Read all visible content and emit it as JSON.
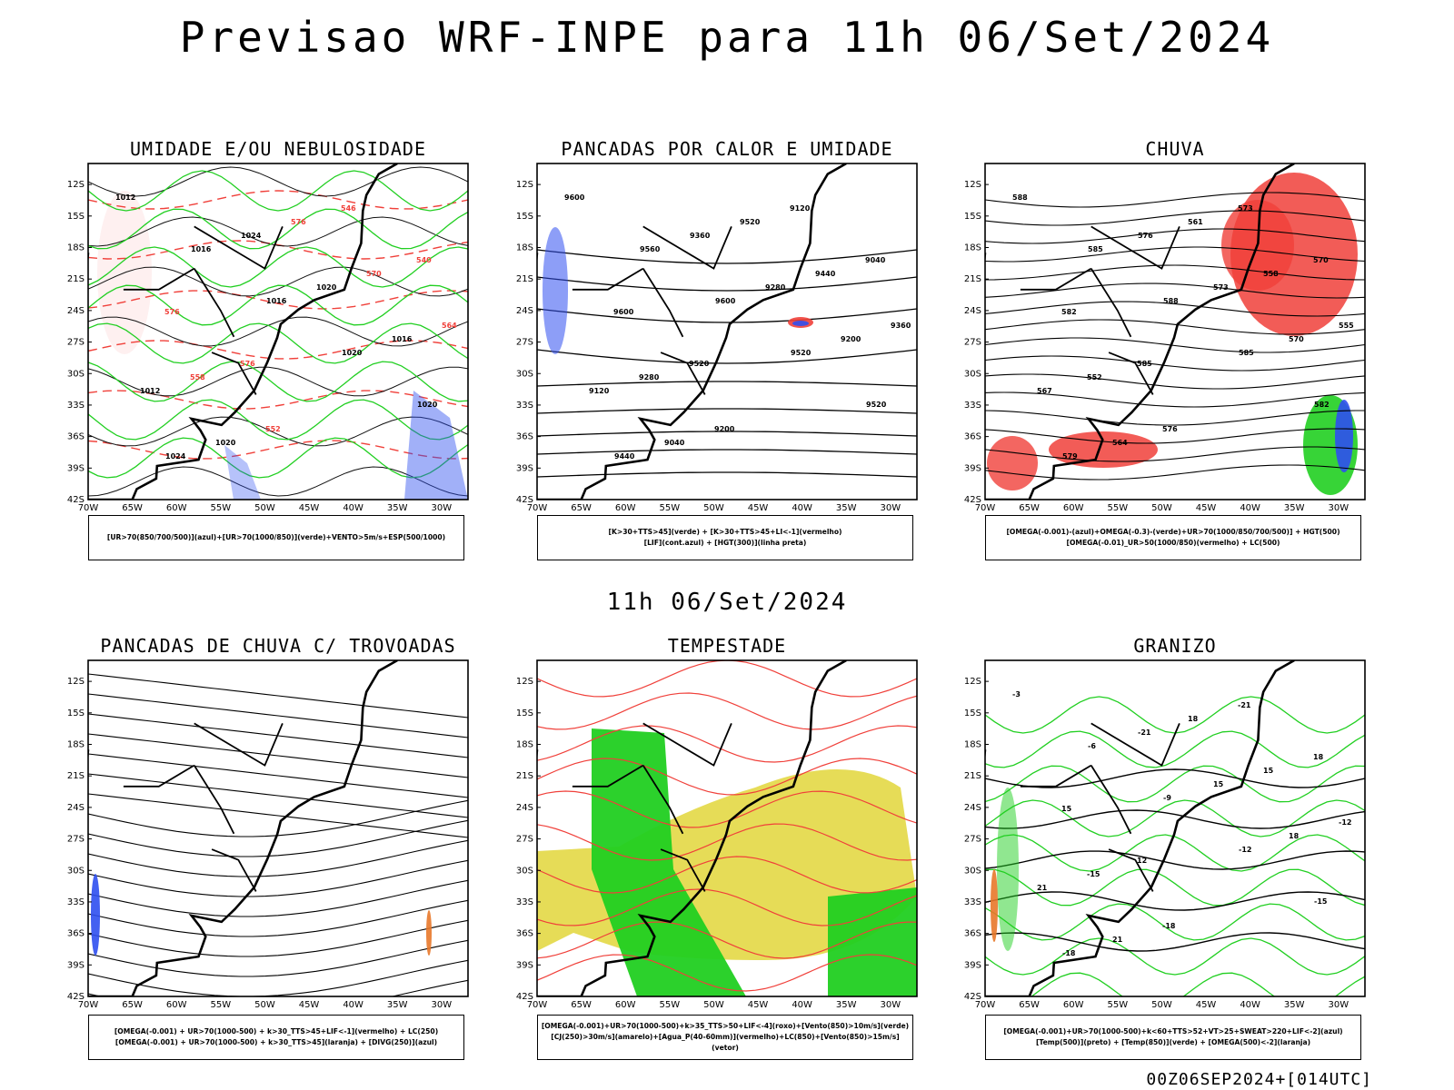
{
  "title": "Previsao WRF-INPE  para 11h 06/Set/2024",
  "mid_title": "11h 06/Set/2024",
  "footer": "00Z06SEP2024+[014UTC]",
  "lat_labels": [
    "12S",
    "15S",
    "18S",
    "21S",
    "24S",
    "27S",
    "30S",
    "33S",
    "36S",
    "39S",
    "42S"
  ],
  "lon_labels": [
    "70W",
    "65W",
    "60W",
    "55W",
    "50W",
    "45W",
    "40W",
    "35W",
    "30W"
  ],
  "colors": {
    "red": "#f0403a",
    "green": "#21cf21",
    "blue": "#2f4ff0",
    "yellow": "#e2d63a",
    "orange": "#e8782a",
    "black": "#000000"
  },
  "panels": [
    {
      "title": "UMIDADE E/OU NEBULOSIDADE",
      "legend": [
        "[UR>70(850/700/500)](azul)+[UR>70(1000/850)](verde)+VENTO>5m/s+ESP(500/1000)"
      ],
      "labels": [
        "1012",
        "1016",
        "1016",
        "1020",
        "1020",
        "1024",
        "1024",
        "1020",
        "1016",
        "1012",
        "1020",
        "576",
        "570",
        "564",
        "558",
        "552",
        "546",
        "540",
        "576",
        "576"
      ]
    },
    {
      "title": "PANCADAS POR CALOR E UMIDADE",
      "legend": [
        "[K>30+TTS>45](verde) + [K>30+TTS>45+LI<-1](vermelho)",
        "[LIF](cont.azul) + [HGT(300)](linha preta)"
      ],
      "labels": [
        "9600",
        "9560",
        "9600",
        "9520",
        "9520",
        "9440",
        "9360",
        "9280",
        "9200",
        "9120",
        "9040",
        "9520",
        "9440",
        "9360",
        "9280",
        "9200",
        "9120",
        "9040",
        "9600",
        "9520"
      ]
    },
    {
      "title": "CHUVA",
      "legend": [
        "[OMEGA(-0.001)-(azul)+OMEGA(-0.3)-(verde)+UR>70(1000/850/700/500)] + HGT(500)",
        "[OMEGA(-0.01)_UR>50(1000/850)(vermelho) + LC(500)"
      ],
      "labels": [
        "588",
        "585",
        "588",
        "585",
        "582",
        "579",
        "576",
        "573",
        "570",
        "567",
        "564",
        "561",
        "558",
        "555",
        "552",
        "576",
        "573",
        "570",
        "582",
        "585"
      ]
    },
    {
      "title": "PANCADAS DE CHUVA C/ TROVOADAS",
      "legend": [
        "[OMEGA(-0.001) + UR>70(1000-500) + k>30_TTS>45+LIF<-1](vermelho) + LC(250)",
        "[OMEGA(-0.001) + UR>70(1000-500) + k>30_TTS>45](laranja) + [DIVG(250)](azul)"
      ],
      "labels": []
    },
    {
      "title": "TEMPESTADE",
      "legend": [
        "[OMEGA(-0.001)+UR>70(1000-500)+k>35_TTS>50+LIF<-4](roxo)+[Vento(850)>10m/s](verde)",
        "[CJ(250)>30m/s](amarelo)+[Agua_P(40-60mm)](vermelho)+LC(850)+[Vento(850)>15m/s](vetor)"
      ],
      "labels": []
    },
    {
      "title": "GRANIZO",
      "legend": [
        "[OMEGA(-0.001)+UR>70(1000-500)+k<60+TTS>52+VT>25+SWEAT>220+LIF<-2](azul)",
        "[Temp(500)](preto) + [Temp(850)](verde) + [OMEGA(500)<-2](laranja)"
      ],
      "labels": [
        "-3",
        "-6",
        "-9",
        "-12",
        "-15",
        "-18",
        "-21",
        "15",
        "18",
        "21",
        "21",
        "18",
        "15",
        "-12",
        "-15",
        "-18",
        "-21",
        "18",
        "15",
        "12"
      ]
    }
  ]
}
